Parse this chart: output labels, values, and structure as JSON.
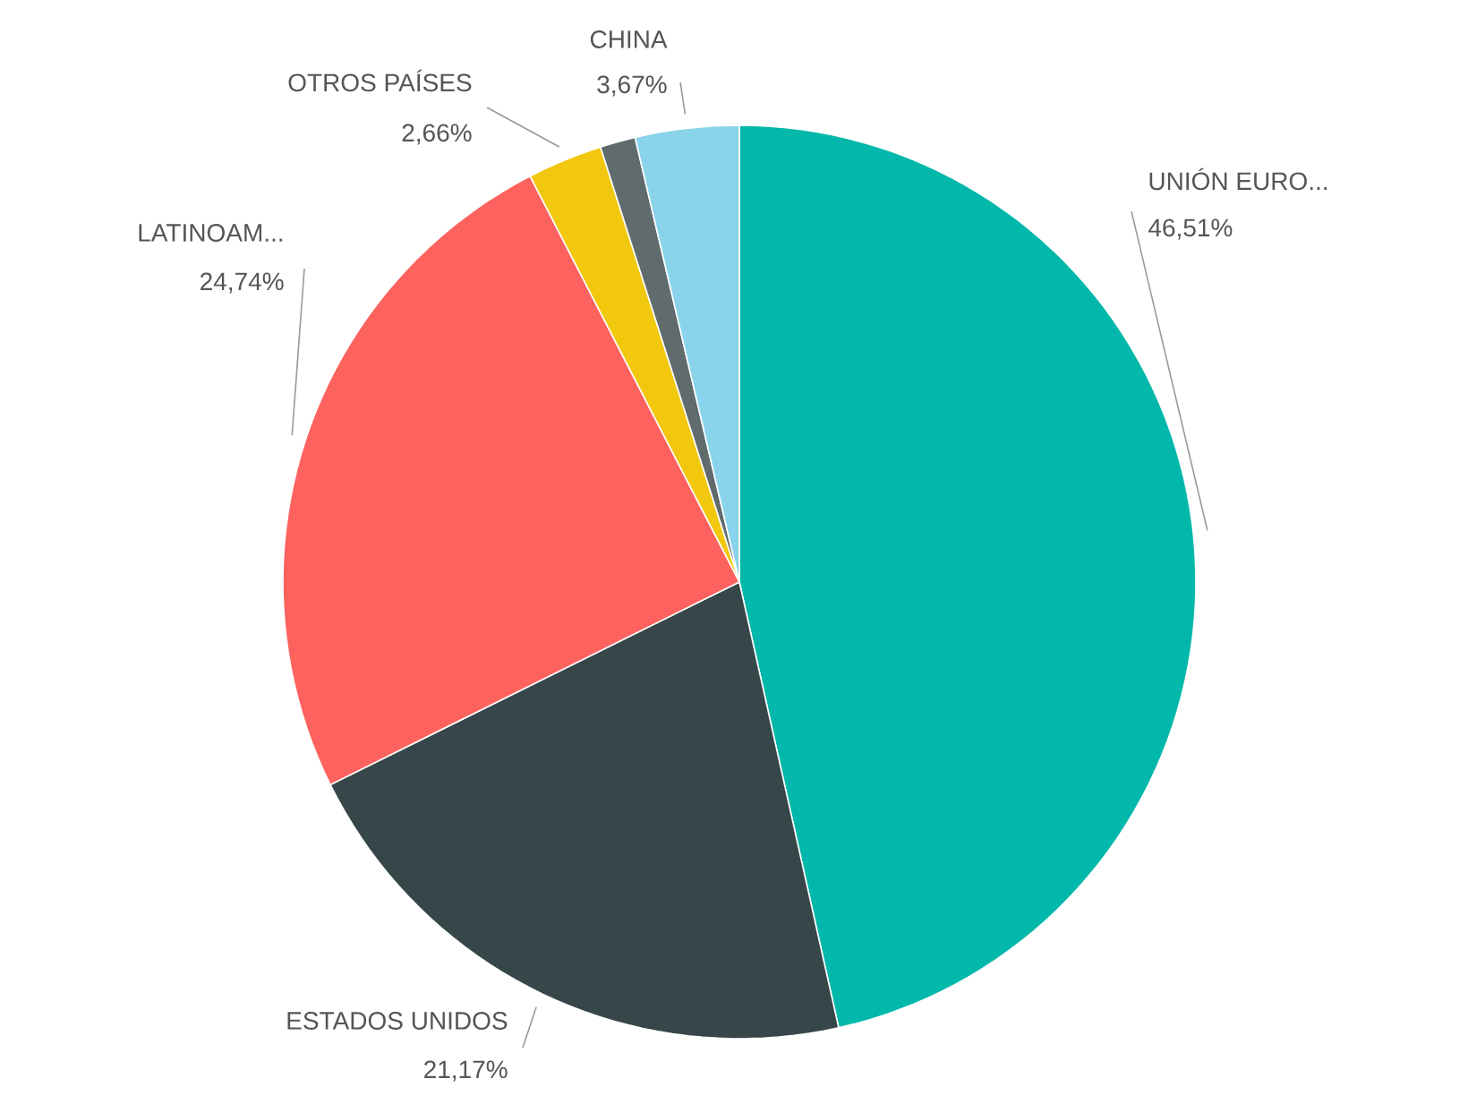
{
  "chart_data": {
    "type": "pie",
    "categories": [
      "UNIÓN EURO...",
      "ESTADOS UNIDOS",
      "LATINOAM...",
      "OTROS PAÍSES",
      null,
      "CHINA"
    ],
    "values": [
      46.51,
      21.17,
      24.74,
      2.66,
      1.25,
      3.67
    ],
    "colors": [
      "#01b8aa",
      "#374649",
      "#fd625e",
      "#f2c80f",
      "#5f6b6d",
      "#8ad4eb"
    ],
    "value_labels": [
      "46,51%",
      "21,17%",
      "24,74%",
      "2,66%",
      null,
      "3,67%"
    ]
  }
}
